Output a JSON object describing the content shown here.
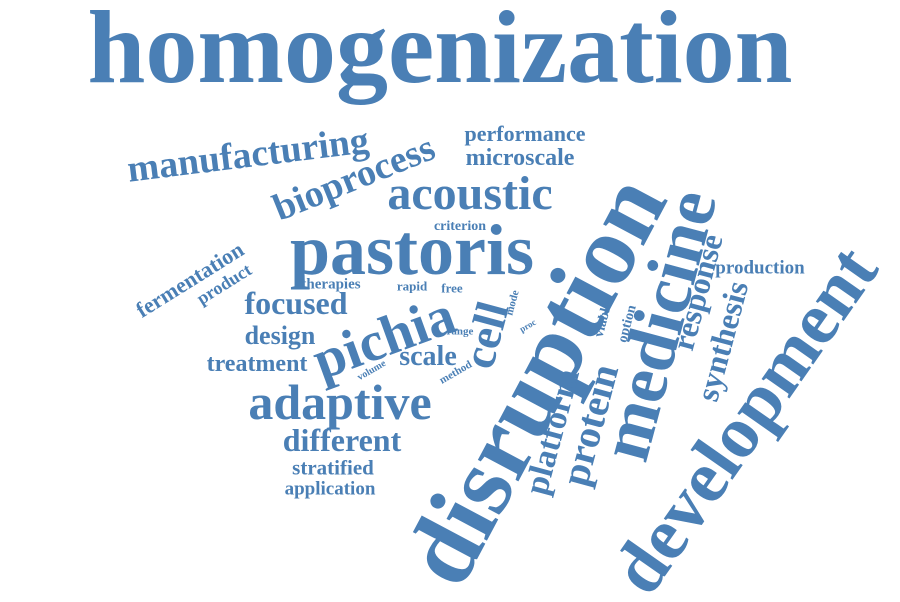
{
  "cloud": {
    "color": "#4a7fb5",
    "words": [
      {
        "id": "homogenization",
        "text": "homogenization"
      },
      {
        "id": "manufacturing",
        "text": "manufacturing"
      },
      {
        "id": "bioprocess",
        "text": "bioprocess"
      },
      {
        "id": "performance",
        "text": "performance"
      },
      {
        "id": "microscale",
        "text": "microscale"
      },
      {
        "id": "acoustic",
        "text": "acoustic"
      },
      {
        "id": "criterion",
        "text": "criterion"
      },
      {
        "id": "pastoris",
        "text": "pastoris"
      },
      {
        "id": "fermentation",
        "text": "fermentation"
      },
      {
        "id": "product",
        "text": "product"
      },
      {
        "id": "focused",
        "text": "focused"
      },
      {
        "id": "therapies",
        "text": "therapies"
      },
      {
        "id": "rapid",
        "text": "rapid"
      },
      {
        "id": "free",
        "text": "free"
      },
      {
        "id": "pichia",
        "text": "pichia"
      },
      {
        "id": "design",
        "text": "design"
      },
      {
        "id": "treatment",
        "text": "treatment"
      },
      {
        "id": "scale",
        "text": "scale"
      },
      {
        "id": "range",
        "text": "range"
      },
      {
        "id": "volume",
        "text": "volume"
      },
      {
        "id": "method",
        "text": "method"
      },
      {
        "id": "mode",
        "text": "mode"
      },
      {
        "id": "proc",
        "text": "proc"
      },
      {
        "id": "adaptive",
        "text": "adaptive"
      },
      {
        "id": "different",
        "text": "different"
      },
      {
        "id": "stratified",
        "text": "stratified"
      },
      {
        "id": "application",
        "text": "application"
      },
      {
        "id": "cell",
        "text": "cell"
      },
      {
        "id": "disruption",
        "text": "disruption"
      },
      {
        "id": "platform",
        "text": "platform"
      },
      {
        "id": "protein",
        "text": "protein"
      },
      {
        "id": "viable",
        "text": "viable"
      },
      {
        "id": "option",
        "text": "option"
      },
      {
        "id": "medicine",
        "text": "medicine"
      },
      {
        "id": "response",
        "text": "response"
      },
      {
        "id": "production",
        "text": "production"
      },
      {
        "id": "synthesis",
        "text": "synthesis"
      },
      {
        "id": "development",
        "text": "development"
      }
    ]
  }
}
